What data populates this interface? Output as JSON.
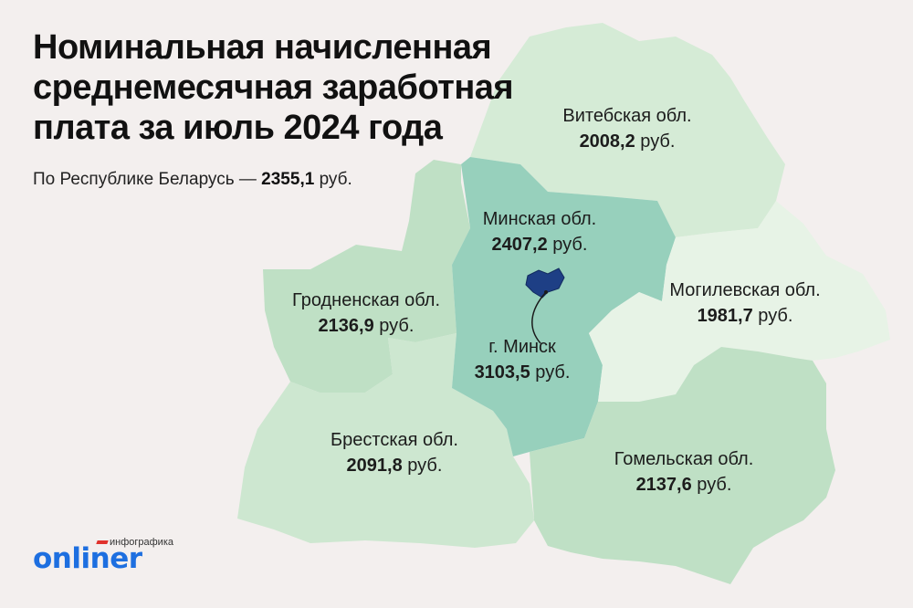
{
  "title_lines": [
    "Номинальная начисленная",
    "среднемесячная заработная",
    "плата за июль 2024 года"
  ],
  "subtitle": {
    "prefix": "По Республике Беларусь — ",
    "value": "2355,1",
    "unit": " руб."
  },
  "regions": {
    "vitebsk": {
      "name": "Витебская обл.",
      "value": "2008,2",
      "unit": " руб.",
      "color": "#d5ebd6"
    },
    "minsk_obl": {
      "name": "Минская обл.",
      "value": "2407,2",
      "unit": " руб.",
      "color": "#97d0bc"
    },
    "grodno": {
      "name": "Гродненская обл.",
      "value": "2136,9",
      "unit": " руб.",
      "color": "#bfe0c5"
    },
    "minsk_city": {
      "name": "г. Минск",
      "value": "3103,5",
      "unit": " руб.",
      "color": "#1e3f85"
    },
    "mogilev": {
      "name": "Могилевская обл.",
      "value": "1981,7",
      "unit": " руб.",
      "color": "#e7f3e6"
    },
    "brest": {
      "name": "Брестская обл.",
      "value": "2091,8",
      "unit": " руб.",
      "color": "#cde7d0"
    },
    "gomel": {
      "name": "Гомельская обл.",
      "value": "2137,6",
      "unit": " руб.",
      "color": "#bfe0c5"
    }
  },
  "brand": {
    "tag": "инфографика",
    "name": "onliner"
  }
}
